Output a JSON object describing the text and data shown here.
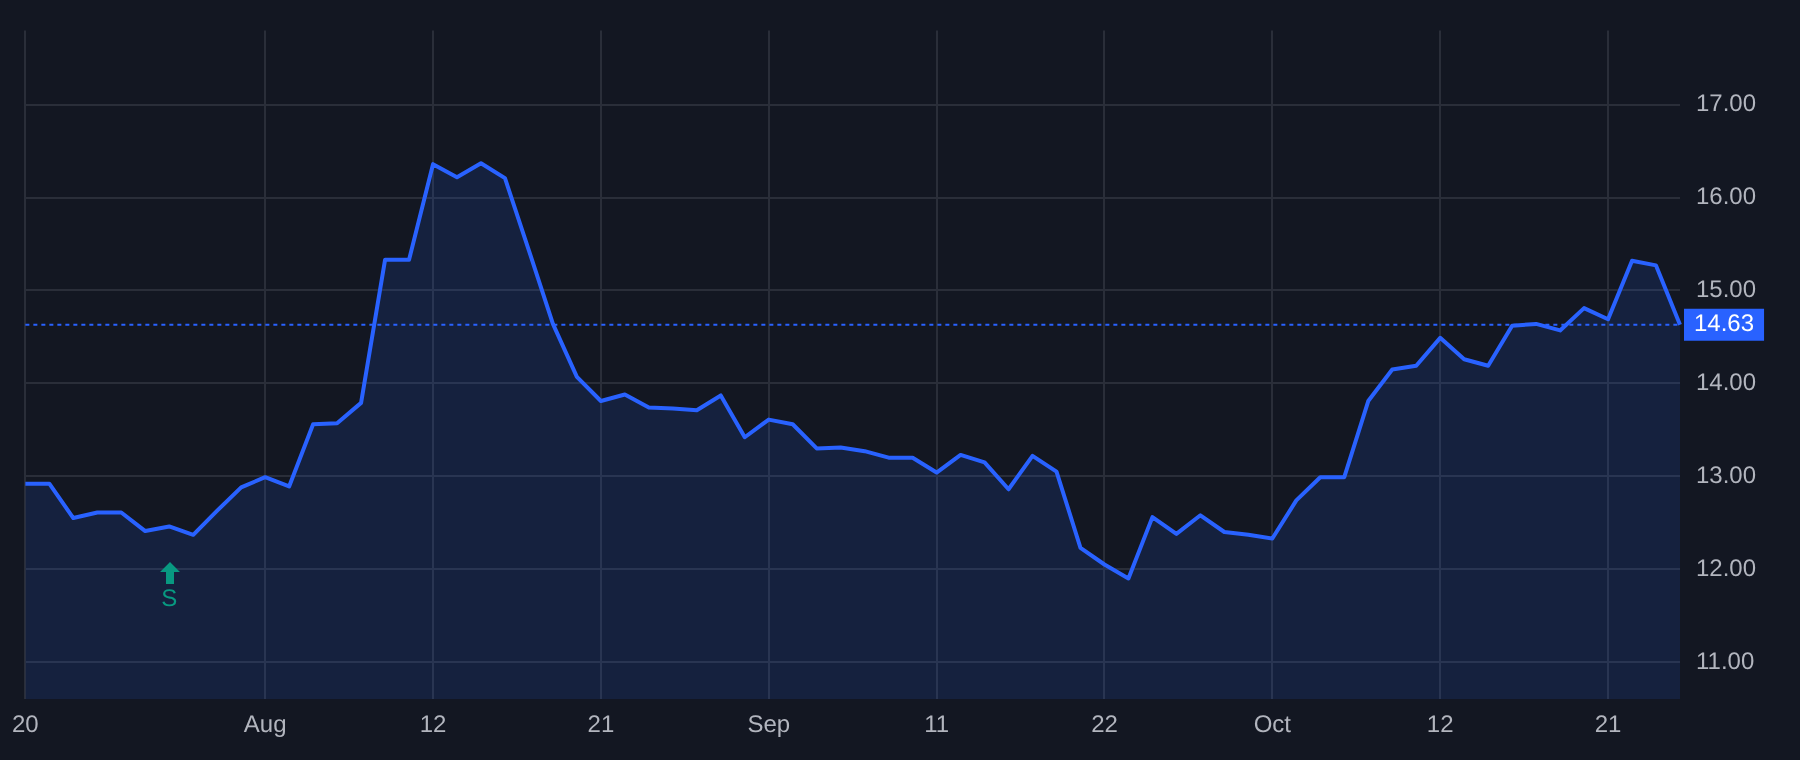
{
  "chart_data": {
    "type": "area",
    "categories": [
      "20",
      null,
      null,
      null,
      null,
      null,
      null,
      null,
      null,
      null,
      "Aug",
      null,
      null,
      null,
      null,
      null,
      null,
      "12",
      null,
      null,
      null,
      null,
      null,
      null,
      "21",
      null,
      null,
      null,
      null,
      null,
      null,
      "Sep",
      null,
      null,
      null,
      null,
      null,
      null,
      "11",
      null,
      null,
      null,
      null,
      null,
      null,
      "22",
      null,
      null,
      null,
      null,
      null,
      null,
      "Oct",
      null,
      null,
      null,
      null,
      null,
      null,
      "12",
      null,
      null,
      null,
      null,
      null,
      null,
      "21",
      null,
      null,
      null
    ],
    "series": [
      {
        "color": "#2962ff",
        "values": [
          12.92,
          12.92,
          12.55,
          12.61,
          12.61,
          12.41,
          12.46,
          12.37,
          12.63,
          12.88,
          12.99,
          12.89,
          13.56,
          13.57,
          13.79,
          15.33,
          15.33,
          16.36,
          16.22,
          16.37,
          16.21,
          15.43,
          14.64,
          14.07,
          13.81,
          13.88,
          13.74,
          13.73,
          13.71,
          13.87,
          13.42,
          13.61,
          13.56,
          13.3,
          13.31,
          13.27,
          13.2,
          13.2,
          13.04,
          13.23,
          13.15,
          12.86,
          13.22,
          13.05,
          12.23,
          12.05,
          11.9,
          12.56,
          12.38,
          12.58,
          12.4,
          12.37,
          12.33,
          12.74,
          12.99,
          12.99,
          13.81,
          14.15,
          14.19,
          14.49,
          14.26,
          14.19,
          14.62,
          14.64,
          14.57,
          14.81,
          14.69,
          15.32,
          15.27,
          14.63
        ]
      }
    ],
    "ylim": [
      10.6,
      17.8
    ],
    "yticks": [
      {
        "value": 11,
        "label": "11.00"
      },
      {
        "value": 12,
        "label": "12.00"
      },
      {
        "value": 13,
        "label": "13.00"
      },
      {
        "value": 14,
        "label": "14.00"
      },
      {
        "value": 15,
        "label": "15.00"
      },
      {
        "value": 16,
        "label": "16.00"
      },
      {
        "value": 17,
        "label": "17.00"
      }
    ],
    "grid": true,
    "marker": "none",
    "line_style": "solid",
    "ref_lines": [
      {
        "axis": "y",
        "value": 14.63,
        "label": "14.63",
        "color": "#2962ff",
        "line_style": "dotted"
      }
    ],
    "annotations": [
      "S"
    ]
  }
}
